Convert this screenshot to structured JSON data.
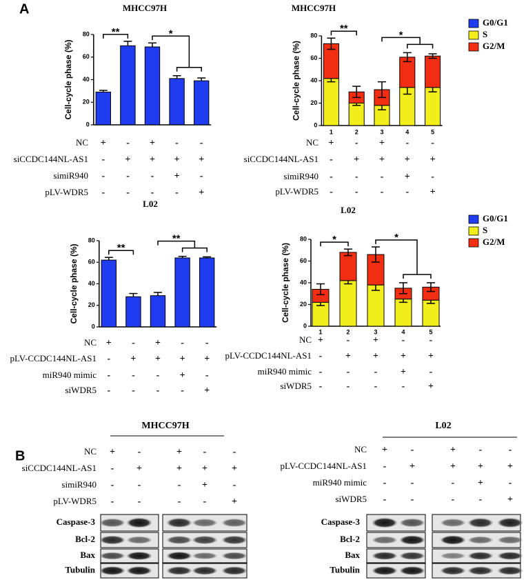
{
  "panel_labels": [
    "A",
    "B"
  ],
  "chart_data": [
    {
      "type": "bar",
      "title": "MHCC97H",
      "y_label": "Cell-cycle phase (%)",
      "values": [
        29,
        70,
        69,
        41,
        39
      ],
      "errors": [
        1.5,
        4,
        3.5,
        2.5,
        2.5
      ],
      "color": "#1f3cf0",
      "ylim": [
        0,
        80
      ],
      "yticks": [
        0,
        20,
        40,
        60,
        80
      ],
      "annotations": [
        "**",
        "*"
      ],
      "conditions": [
        {
          "label": "NC",
          "signs": [
            "+",
            "-",
            "+",
            "-",
            "-"
          ]
        },
        {
          "label": "siCCDC144NL-AS1",
          "signs": [
            "-",
            "+",
            "+",
            "+",
            "+"
          ]
        },
        {
          "label": "simiR940",
          "signs": [
            "-",
            "-",
            "-",
            "+",
            "-"
          ]
        },
        {
          "label": "pLV-WDR5",
          "signs": [
            "-",
            "-",
            "-",
            "-",
            "+"
          ]
        }
      ]
    },
    {
      "type": "stacked_bar",
      "title": "MHCC97H",
      "y_label": "Cell-cycle phase (%)",
      "categories": [
        "1",
        "2",
        "3",
        "4",
        "5"
      ],
      "series": [
        {
          "name": "G0/G1",
          "color": "#1f3cf0",
          "values": [
            null,
            null,
            null,
            null,
            null
          ],
          "errors": [
            null,
            null,
            null,
            null,
            null
          ]
        },
        {
          "name": "S",
          "color": "#f2ee1c",
          "values": [
            42,
            20,
            18,
            34,
            34
          ],
          "errors": [
            3,
            2,
            4,
            6,
            4
          ]
        },
        {
          "name": "G2/M",
          "color": "#f22e12",
          "values": [
            31,
            10,
            14,
            27,
            28
          ],
          "errors": [
            5,
            5,
            7,
            4,
            2
          ]
        }
      ],
      "ylim": [
        0,
        80
      ],
      "yticks": [
        0,
        20,
        40,
        60,
        80
      ],
      "annotations": [
        "**",
        "*"
      ],
      "conditions": [
        {
          "label": "NC",
          "signs": [
            "+",
            "-",
            "+",
            "-",
            "-"
          ]
        },
        {
          "label": "siCCDC144NL-AS1",
          "signs": [
            "-",
            "+",
            "+",
            "+",
            "+"
          ]
        },
        {
          "label": "simiR940",
          "signs": [
            "-",
            "-",
            "-",
            "+",
            "-"
          ]
        },
        {
          "label": "pLV-WDR5",
          "signs": [
            "-",
            "-",
            "-",
            "-",
            "+"
          ]
        }
      ]
    },
    {
      "type": "bar",
      "title": "L02",
      "y_label": "Cell-cycle phase (%)",
      "values": [
        62,
        28,
        29,
        64,
        64
      ],
      "errors": [
        2.5,
        3,
        3,
        1.5,
        1
      ],
      "color": "#1f3cf0",
      "ylim": [
        0,
        80
      ],
      "yticks": [
        0,
        20,
        40,
        60,
        80
      ],
      "annotations": [
        "**",
        "**"
      ],
      "conditions": [
        {
          "label": "NC",
          "signs": [
            "+",
            "-",
            "+",
            "-",
            "-"
          ]
        },
        {
          "label": "pLV-CCDC144NL-AS1",
          "signs": [
            "-",
            "+",
            "+",
            "+",
            "+"
          ]
        },
        {
          "label": "miR940 mimic",
          "signs": [
            "-",
            "-",
            "-",
            "+",
            "-"
          ]
        },
        {
          "label": "siWDR5",
          "signs": [
            "-",
            "-",
            "-",
            "-",
            "+"
          ]
        }
      ]
    },
    {
      "type": "stacked_bar",
      "title": "L02",
      "y_label": "Cell-cycle phase (%)",
      "categories": [
        "1",
        "2",
        "3",
        "4",
        "5"
      ],
      "series": [
        {
          "name": "G0/G1",
          "color": "#1f3cf0",
          "values": [
            null,
            null,
            null,
            null,
            null
          ],
          "errors": [
            null,
            null,
            null,
            null,
            null
          ]
        },
        {
          "name": "S",
          "color": "#f2ee1c",
          "values": [
            22,
            42,
            38,
            25,
            24
          ],
          "errors": [
            3,
            3,
            5,
            3,
            3
          ]
        },
        {
          "name": "G2/M",
          "color": "#f22e12",
          "values": [
            12,
            26,
            28,
            10,
            12
          ],
          "errors": [
            5,
            3,
            7,
            5,
            4
          ]
        }
      ],
      "ylim": [
        0,
        80
      ],
      "yticks": [
        0,
        20,
        40,
        60,
        80
      ],
      "annotations": [
        "*",
        "*"
      ],
      "conditions": [
        {
          "label": "NC",
          "signs": [
            "+",
            "-",
            "+",
            "-",
            "-"
          ]
        },
        {
          "label": "pLV-CCDC144NL-AS1",
          "signs": [
            "-",
            "+",
            "+",
            "+",
            "+"
          ]
        },
        {
          "label": "miR940 mimic",
          "signs": [
            "-",
            "-",
            "-",
            "+",
            "-"
          ]
        },
        {
          "label": "siWDR5",
          "signs": [
            "-",
            "-",
            "-",
            "-",
            "+"
          ]
        }
      ]
    }
  ],
  "blots": [
    {
      "title": "MHCC97H",
      "conditions": [
        {
          "label": "NC",
          "signs": [
            "+",
            "-",
            "+",
            "-",
            "-"
          ]
        },
        {
          "label": "siCCDC144NL-AS1",
          "signs": [
            "-",
            "+",
            "+",
            "+",
            "+"
          ]
        },
        {
          "label": "simiR940",
          "signs": [
            "-",
            "-",
            "-",
            "+",
            "-"
          ]
        },
        {
          "label": "pLV-WDR5",
          "signs": [
            "-",
            "-",
            "-",
            "-",
            "+"
          ]
        }
      ],
      "proteins": [
        "Caspase-3",
        "Bcl-2",
        "Bax",
        "Tubulin"
      ]
    },
    {
      "title": "L02",
      "conditions": [
        {
          "label": "NC",
          "signs": [
            "+",
            "-",
            "+",
            "-",
            "-"
          ]
        },
        {
          "label": "pLV-CCDC144NL-AS1",
          "signs": [
            "-",
            "+",
            "+",
            "+",
            "+"
          ]
        },
        {
          "label": "miR940 mimic",
          "signs": [
            "-",
            "-",
            "-",
            "+",
            "-"
          ]
        },
        {
          "label": "siWDR5",
          "signs": [
            "-",
            "-",
            "-",
            "-",
            "+"
          ]
        }
      ],
      "proteins": [
        "Caspase-3",
        "Bcl-2",
        "Bax",
        "Tubulin"
      ]
    }
  ]
}
